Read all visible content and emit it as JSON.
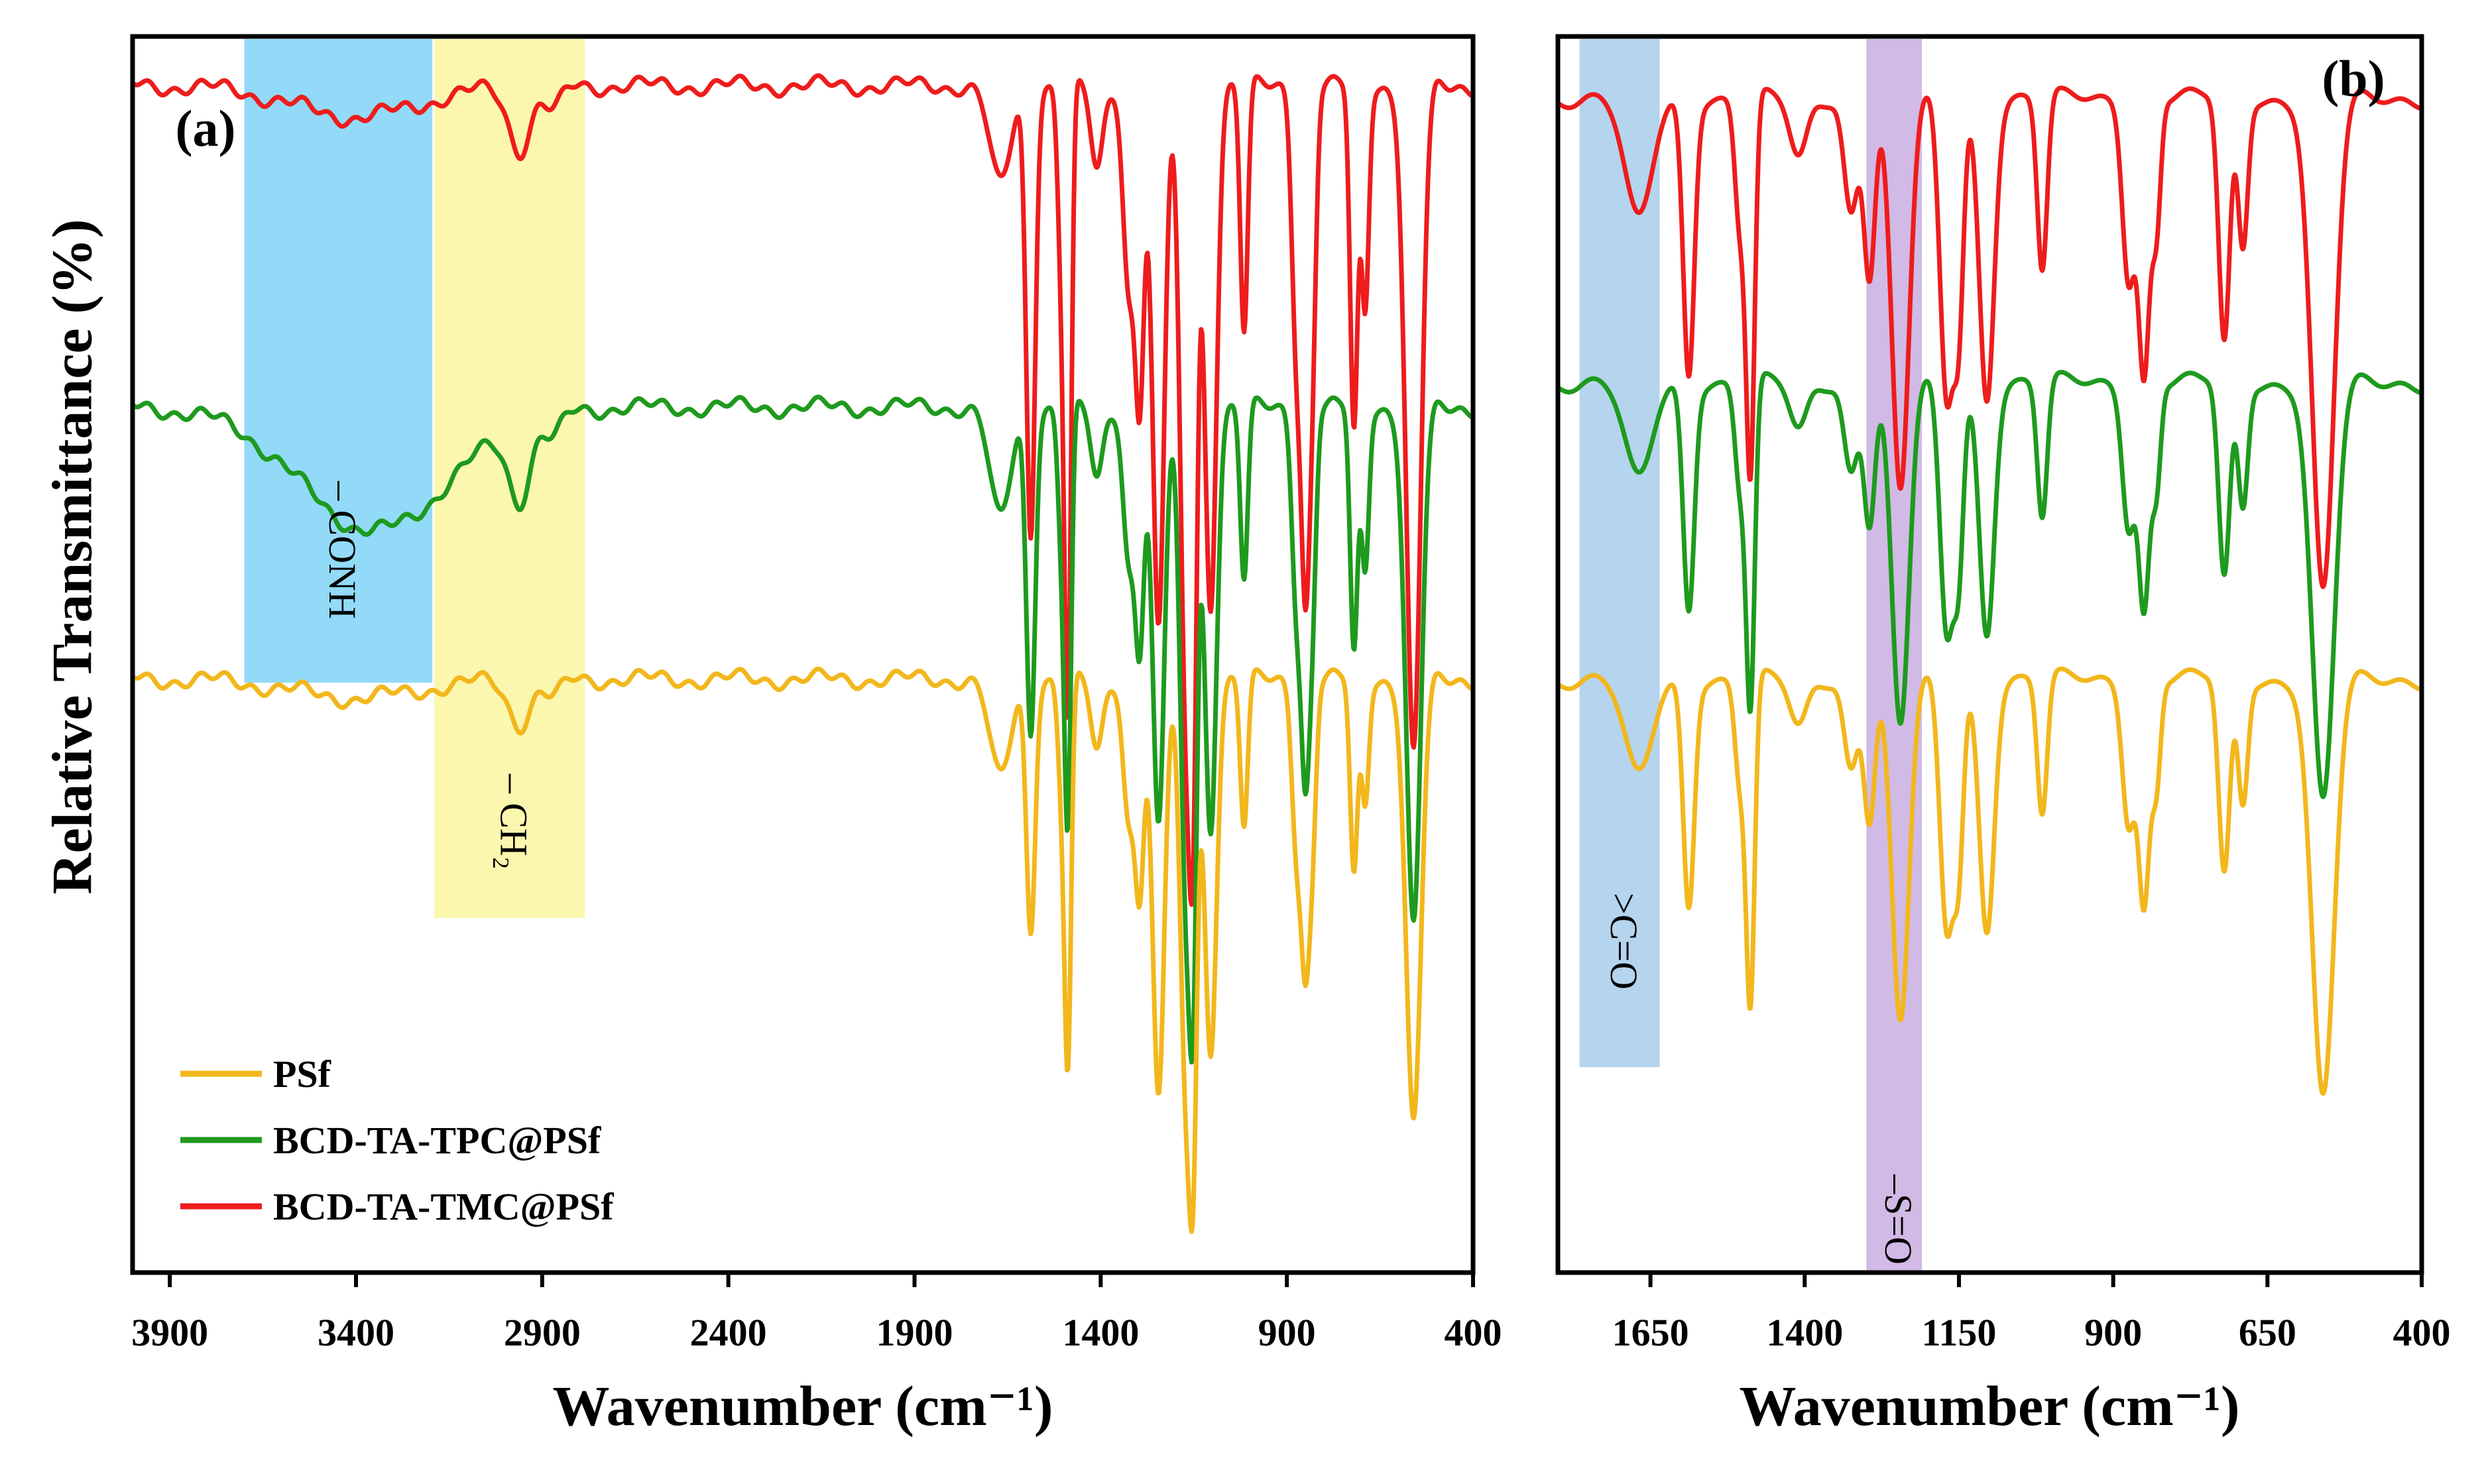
{
  "ylabel": "Relative Transmittance (%)",
  "legend": [
    {
      "name": "PSf",
      "color": "#f2b71c"
    },
    {
      "name": "BCD-TA-TPC@PSf",
      "color": "#1e9a1e"
    },
    {
      "name": "BCD-TA-TMC@PSf",
      "color": "#ee1c1c"
    }
  ],
  "chart_data": [
    {
      "type": "line",
      "panel_label": "(a)",
      "xlabel": "Wavenumber (cm⁻¹)",
      "xlim": [
        4000,
        400
      ],
      "xticks": [
        "3900",
        "3400",
        "2900",
        "2400",
        "1900",
        "1400",
        "900",
        "400"
      ],
      "xtick_values": [
        3900,
        3400,
        2900,
        2400,
        1900,
        1400,
        900,
        400
      ],
      "ylim": [
        0,
        100
      ],
      "y_ticks_shown": false,
      "legend_position": "bottom-left",
      "highlight_bands": [
        {
          "name": "conh-band",
          "label": "– CONH",
          "x_start": 3700,
          "x_end": 3195,
          "color": "#7fd3f7"
        },
        {
          "name": "ch2-band",
          "label": "– CH₂",
          "x_start": 3190,
          "x_end": 2785,
          "color": "#fbf6a0"
        }
      ],
      "series": [
        {
          "name": "BCD-TA-TMC@PSf",
          "color": "#ee1c1c",
          "baseline": 96,
          "drift": 0.5,
          "peaks": [
            [
              3400,
              2.5,
              170
            ],
            [
              2960,
              5,
              30
            ],
            [
              2870,
              2,
              22
            ],
            [
              1670,
              8,
              28
            ],
            [
              1588,
              36,
              12
            ],
            [
              1505,
              14,
              10
            ],
            [
              1488,
              48,
              9
            ],
            [
              1410,
              7,
              16
            ],
            [
              1325,
              16,
              15
            ],
            [
              1295,
              24,
              12
            ],
            [
              1245,
              44,
              16
            ],
            [
              1170,
              52,
              16
            ],
            [
              1150,
              36,
              10
            ],
            [
              1105,
              42,
              16
            ],
            [
              1015,
              20,
              10
            ],
            [
              875,
              19,
              12
            ],
            [
              850,
              38,
              12
            ],
            [
              830,
              16,
              10
            ],
            [
              720,
              28,
              10
            ],
            [
              690,
              18,
              10
            ],
            [
              560,
              54,
              20
            ]
          ]
        },
        {
          "name": "BCD-TA-TPC@PSf",
          "color": "#1e9a1e",
          "baseline": 70,
          "drift": 0.5,
          "peaks": [
            [
              3350,
              10,
              200
            ],
            [
              2960,
              6,
              30
            ],
            [
              2870,
              2,
              22
            ],
            [
              1670,
              9,
              28
            ],
            [
              1588,
              26,
              12
            ],
            [
              1505,
              10,
              10
            ],
            [
              1488,
              32,
              9
            ],
            [
              1410,
              6,
              16
            ],
            [
              1325,
              12,
              15
            ],
            [
              1295,
              18,
              12
            ],
            [
              1245,
              34,
              16
            ],
            [
              1170,
              40,
              16
            ],
            [
              1150,
              30,
              10
            ],
            [
              1105,
              34,
              16
            ],
            [
              1015,
              14,
              10
            ],
            [
              875,
              14,
              12
            ],
            [
              850,
              28,
              12
            ],
            [
              830,
              12,
              10
            ],
            [
              720,
              20,
              10
            ],
            [
              690,
              13,
              10
            ],
            [
              560,
              42,
              20
            ]
          ]
        },
        {
          "name": "PSf",
          "color": "#f2b71c",
          "baseline": 48,
          "drift": 0.5,
          "peaks": [
            [
              3400,
              1.5,
              170
            ],
            [
              2960,
              3.5,
              30
            ],
            [
              2870,
              1.5,
              22
            ],
            [
              1670,
              8,
              28
            ],
            [
              1588,
              20,
              12
            ],
            [
              1505,
              8,
              10
            ],
            [
              1488,
              30,
              9
            ],
            [
              1410,
              6,
              16
            ],
            [
              1325,
              11,
              15
            ],
            [
              1295,
              16,
              12
            ],
            [
              1245,
              34,
              16
            ],
            [
              1170,
              34,
              16
            ],
            [
              1150,
              25,
              10
            ],
            [
              1105,
              30,
              16
            ],
            [
              1015,
              12,
              10
            ],
            [
              875,
              12,
              12
            ],
            [
              850,
              22,
              12
            ],
            [
              830,
              10,
              10
            ],
            [
              720,
              16,
              10
            ],
            [
              690,
              10,
              10
            ],
            [
              560,
              36,
              20
            ]
          ]
        }
      ]
    },
    {
      "type": "line",
      "panel_label": "(b)",
      "xlabel": "Wavenumber (cm⁻¹)",
      "xlim": [
        1800,
        400
      ],
      "xticks": [
        "1650",
        "1400",
        "1150",
        "900",
        "650",
        "400"
      ],
      "xtick_values": [
        1650,
        1400,
        1150,
        900,
        650,
        400
      ],
      "ylim": [
        0,
        100
      ],
      "y_ticks_shown": false,
      "highlight_bands": [
        {
          "name": "c-o-band",
          "label": ">C=O",
          "x_start": 1765,
          "x_end": 1635,
          "color": "#a8cdea"
        },
        {
          "name": "s-o-band",
          "label": "–S=O",
          "x_start": 1300,
          "x_end": 1210,
          "color": "#c9aee0"
        }
      ],
      "series": [
        {
          "name": "BCD-TA-TMC@PSf",
          "color": "#ee1c1c",
          "baseline": 95,
          "drift": 0.5,
          "peaks": [
            [
              1670,
              10,
              22
            ],
            [
              1588,
              22,
              9
            ],
            [
              1505,
              10,
              8
            ],
            [
              1488,
              30,
              7
            ],
            [
              1410,
              5,
              14
            ],
            [
              1325,
              9,
              11
            ],
            [
              1295,
              14,
              9
            ],
            [
              1245,
              32,
              14
            ],
            [
              1170,
              24,
              11
            ],
            [
              1150,
              16,
              8
            ],
            [
              1105,
              24,
              12
            ],
            [
              1015,
              14,
              8
            ],
            [
              875,
              14,
              10
            ],
            [
              850,
              22,
              9
            ],
            [
              830,
              10,
              7
            ],
            [
              720,
              20,
              9
            ],
            [
              690,
              12,
              8
            ],
            [
              560,
              40,
              18
            ]
          ]
        },
        {
          "name": "BCD-TA-TPC@PSf",
          "color": "#1e9a1e",
          "baseline": 72,
          "drift": 0.5,
          "peaks": [
            [
              1670,
              8,
              22
            ],
            [
              1588,
              18,
              9
            ],
            [
              1505,
              8,
              8
            ],
            [
              1488,
              26,
              7
            ],
            [
              1410,
              4,
              14
            ],
            [
              1325,
              7,
              11
            ],
            [
              1295,
              11,
              9
            ],
            [
              1245,
              28,
              14
            ],
            [
              1170,
              20,
              11
            ],
            [
              1150,
              13,
              8
            ],
            [
              1105,
              20,
              12
            ],
            [
              1015,
              11,
              8
            ],
            [
              875,
              11,
              10
            ],
            [
              850,
              18,
              9
            ],
            [
              830,
              8,
              7
            ],
            [
              720,
              16,
              9
            ],
            [
              690,
              10,
              8
            ],
            [
              560,
              34,
              18
            ]
          ]
        },
        {
          "name": "PSf",
          "color": "#f2b71c",
          "baseline": 48,
          "drift": 0.5,
          "peaks": [
            [
              1670,
              8,
              22
            ],
            [
              1588,
              18,
              9
            ],
            [
              1505,
              8,
              8
            ],
            [
              1488,
              26,
              7
            ],
            [
              1410,
              4,
              14
            ],
            [
              1325,
              7,
              11
            ],
            [
              1295,
              11,
              9
            ],
            [
              1245,
              28,
              14
            ],
            [
              1170,
              20,
              11
            ],
            [
              1150,
              13,
              8
            ],
            [
              1105,
              20,
              12
            ],
            [
              1015,
              11,
              8
            ],
            [
              875,
              11,
              10
            ],
            [
              850,
              18,
              9
            ],
            [
              830,
              8,
              7
            ],
            [
              720,
              16,
              9
            ],
            [
              690,
              10,
              8
            ],
            [
              560,
              34,
              18
            ]
          ]
        }
      ]
    }
  ]
}
